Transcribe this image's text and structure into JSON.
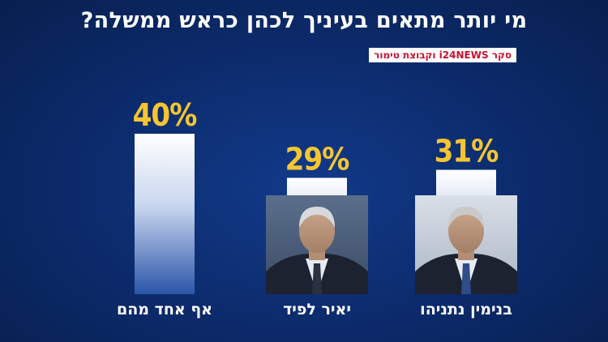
{
  "header": {
    "title": "מי יותר מתאים בעיניך לכהן כראש ממשלה?",
    "source": "סקר i24NEWS וקבוצת טימור"
  },
  "colors": {
    "background": "#0c2a6a",
    "bar_top": "#ffffff",
    "bar_bottom": "#2a55a8",
    "percent_label": "#f6c531",
    "source_text": "#c8102e"
  },
  "chart_data": {
    "type": "bar",
    "title": "מי יותר מתאים בעיניך לכהן כראש ממשלה?",
    "categories": [
      "אף אחד מהם",
      "יאיר לפיד",
      "בנימין נתניהו"
    ],
    "values": [
      40,
      29,
      31
    ],
    "data_labels": [
      "40%",
      "29%",
      "31%"
    ],
    "photos": [
      "",
      "portrait",
      "portrait"
    ],
    "grid": false,
    "legend": "none"
  }
}
